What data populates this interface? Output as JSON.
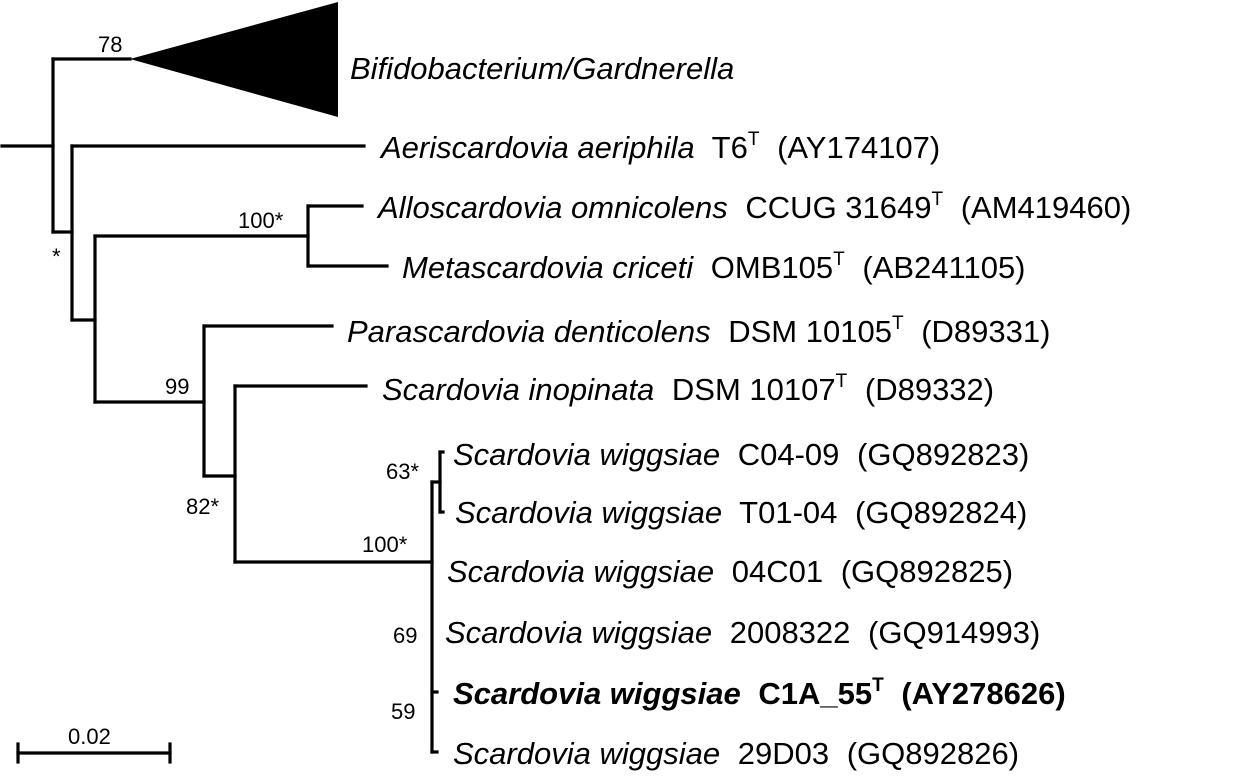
{
  "collapsed_clade": {
    "label": "Bifidobacterium/Gardnerella"
  },
  "taxa": [
    {
      "id": "aeriscardovia",
      "genus_species": "Aeriscardovia aeriphila",
      "strain": "T6",
      "type_strain": true,
      "accession": "(AY174107)",
      "bold": false
    },
    {
      "id": "alloscardovia",
      "genus_species": "Alloscardovia omnicolens",
      "strain": "CCUG 31649",
      "type_strain": true,
      "accession": "(AM419460)",
      "bold": false
    },
    {
      "id": "metascardovia",
      "genus_species": "Metascardovia criceti",
      "strain": " OMB105",
      "type_strain": true,
      "accession": "(AB241105)",
      "bold": false
    },
    {
      "id": "parascardovia",
      "genus_species": "Parascardovia denticolens",
      "strain": "DSM 10105",
      "type_strain": true,
      "accession": "(D89331)",
      "bold": false
    },
    {
      "id": "scardovia-inopinata",
      "genus_species": "Scardovia inopinata",
      "strain": "DSM 10107",
      "type_strain": true,
      "accession": "(D89332)",
      "bold": false
    },
    {
      "id": "sw-c0409",
      "genus_species": "Scardovia wiggsiae",
      "strain": "C04-09",
      "type_strain": false,
      "accession": "(GQ892823)",
      "bold": false
    },
    {
      "id": "sw-t0104",
      "genus_species": "Scardovia wiggsiae",
      "strain": "T01-04",
      "type_strain": false,
      "accession": "(GQ892824)",
      "bold": false
    },
    {
      "id": "sw-04c01",
      "genus_species": "Scardovia wiggsiae",
      "strain": "04C01",
      "type_strain": false,
      "accession": "(GQ892825)",
      "bold": false
    },
    {
      "id": "sw-2008322",
      "genus_species": "Scardovia wiggsiae",
      "strain": "2008322",
      "type_strain": false,
      "accession": "(GQ914993)",
      "bold": false
    },
    {
      "id": "sw-c1a55",
      "genus_species": "Scardovia wiggsiae",
      "strain": "C1A_55",
      "type_strain": true,
      "accession": "(AY278626)",
      "bold": true
    },
    {
      "id": "sw-29d03",
      "genus_species": "Scardovia wiggsiae",
      "strain": "29D03",
      "type_strain": false,
      "accession": "(GQ892826)",
      "bold": false
    }
  ],
  "type_superscript": "T",
  "support_values": {
    "bifido": "78",
    "root_split": "*",
    "allo_meta": "100*",
    "para_scard": "99",
    "scardovia": "82*",
    "wiggsiae": "100*",
    "c04_t01": "63*",
    "n69": "69",
    "n59": "59"
  },
  "scale_bar": {
    "label": "0.02"
  }
}
